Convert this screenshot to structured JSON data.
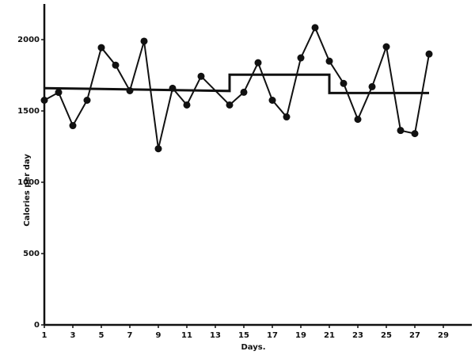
{
  "chart_data": {
    "type": "line",
    "xlabel": "Days.",
    "ylabel": "Calories per day",
    "xlim": [
      1,
      31
    ],
    "ylim": [
      0,
      2250
    ],
    "xticks": [
      1,
      3,
      5,
      7,
      9,
      11,
      13,
      15,
      17,
      19,
      21,
      23,
      25,
      27,
      29
    ],
    "yticks": [
      0,
      500,
      1000,
      1500,
      2000
    ],
    "series": [
      {
        "color": "#111111",
        "markers": true,
        "x": [
          1,
          2,
          3,
          4,
          5,
          6,
          7,
          8,
          9,
          10,
          11,
          12,
          14,
          15,
          16,
          17,
          18,
          19,
          20,
          21,
          22,
          23,
          24,
          25,
          26,
          27,
          28
        ],
        "values": [
          1575,
          1630,
          1397,
          1575,
          1944,
          1821,
          1642,
          1989,
          1235,
          1659,
          1542,
          1743,
          1542,
          1631,
          1838,
          1575,
          1458,
          1872,
          2084,
          1849,
          1693,
          1441,
          1670,
          1950,
          1363,
          1341,
          1899
        ]
      },
      {
        "color": "#111111",
        "markers": false,
        "x": [
          1,
          14,
          14,
          21,
          21,
          28
        ],
        "values": [
          1660,
          1640,
          1754,
          1754,
          1626,
          1626
        ]
      }
    ]
  }
}
